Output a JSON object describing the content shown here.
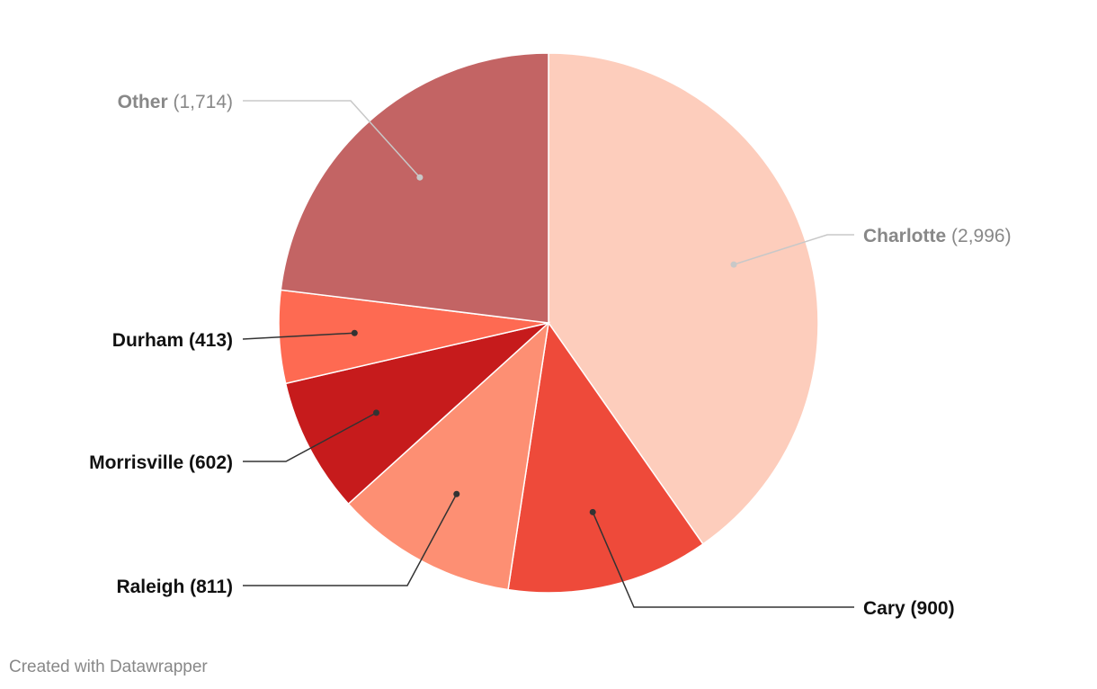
{
  "chart_data": {
    "type": "pie",
    "title": "",
    "slices": [
      {
        "name": "Charlotte",
        "value": 2996,
        "value_label": "2,996",
        "color": "#fdcdbc",
        "emphasis": false
      },
      {
        "name": "Cary",
        "value": 900,
        "value_label": "900",
        "color": "#ee4a3a",
        "emphasis": true
      },
      {
        "name": "Raleigh",
        "value": 811,
        "value_label": "811",
        "color": "#fd8f73",
        "emphasis": true
      },
      {
        "name": "Morrisville",
        "value": 602,
        "value_label": "602",
        "color": "#c61b1c",
        "emphasis": true
      },
      {
        "name": "Durham",
        "value": 413,
        "value_label": "413",
        "color": "#fe6a52",
        "emphasis": true
      },
      {
        "name": "Other",
        "value": 1714,
        "value_label": "1,714",
        "color": "#c36464",
        "emphasis": false
      }
    ]
  },
  "credit": "Created with Datawrapper",
  "colors": {
    "muted_label": "#888888",
    "strong_label": "#111111",
    "muted_leader": "#c8c8c8",
    "strong_leader": "#333333"
  }
}
